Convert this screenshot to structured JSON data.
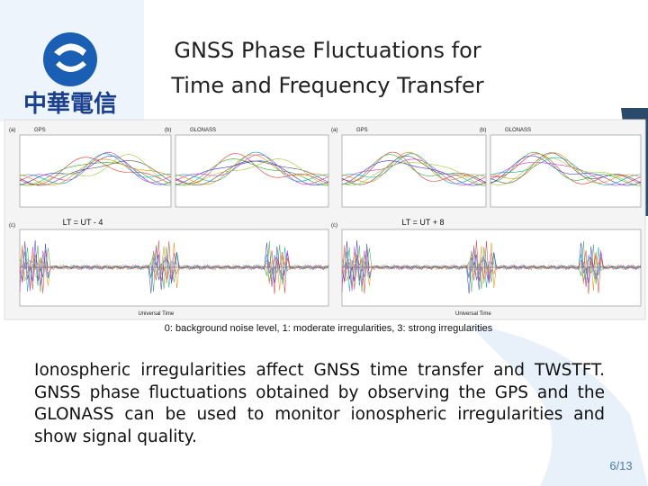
{
  "logo": {
    "text": "中華電信"
  },
  "header": {
    "title_lines": [
      "GNSS Phase Fluctuations for",
      "Time and Frequency Transfer"
    ]
  },
  "figure": {
    "top_panels": [
      {
        "tag": "(a)",
        "system": "GPS"
      },
      {
        "tag": "(b)",
        "system": "GLONASS"
      },
      {
        "tag": "(a)",
        "system": "GPS"
      },
      {
        "tag": "(b)",
        "system": "GLONASS"
      }
    ],
    "bottom_panels": [
      {
        "tag": "(c)",
        "label": "LT = UT - 4",
        "x_axis": "Universal Time"
      },
      {
        "tag": "(c)",
        "label": "LT = UT + 8",
        "x_axis": "Universal Time"
      }
    ],
    "caption": "0: background noise level, 1: moderate irregularities, 3: strong irregularities"
  },
  "body": {
    "paragraph": "Ionospheric irregularities affect GNSS time transfer and TWSTFT. GNSS phase fluctuations obtained by observing the GPS and the GLONASS can be used to monitor ionospheric irregularities and show signal quality."
  },
  "footer": {
    "page": "6/13"
  }
}
